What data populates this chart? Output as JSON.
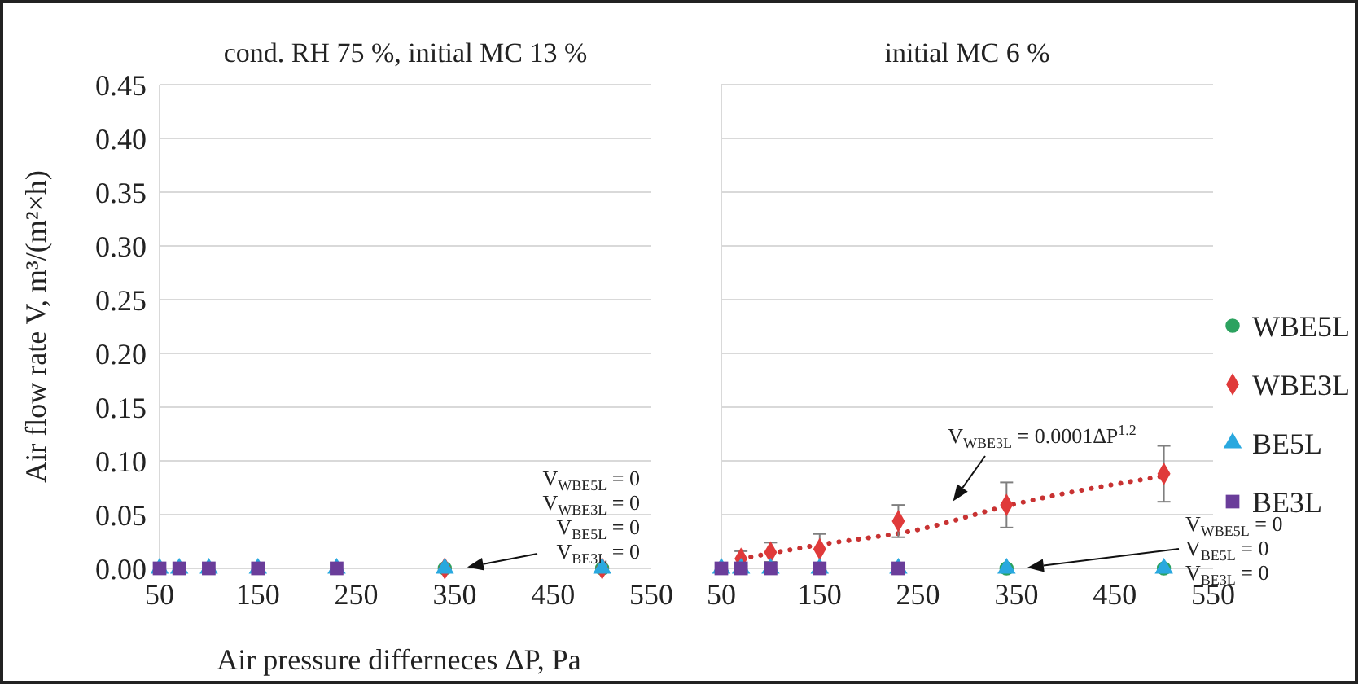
{
  "chart_data": [
    {
      "type": "scatter",
      "title": "cond. RH 75 %, initial  MC 13 %",
      "xlabel": "Air pressure differneces ΔP, Pa",
      "ylabel": "Air flow rate V, m³/(m²×h)",
      "xlim": [
        50,
        550
      ],
      "xticks": [
        50,
        150,
        250,
        350,
        450,
        550
      ],
      "ylim": [
        0,
        0.45
      ],
      "yticks": [
        {
          "value": 0,
          "label": "0.00"
        },
        {
          "value": 0.05,
          "label": "0.05"
        },
        {
          "value": 0.1,
          "label": "0.10"
        },
        {
          "value": 0.15,
          "label": "0.15"
        },
        {
          "value": 0.2,
          "label": "0.20"
        },
        {
          "value": 0.25,
          "label": "0.25"
        },
        {
          "value": 0.3,
          "label": "0.30"
        },
        {
          "value": 0.35,
          "label": "0.35"
        },
        {
          "value": 0.4,
          "label": "0.40"
        },
        {
          "value": 0.45,
          "label": "0.45"
        }
      ],
      "grid": "y",
      "series": [
        {
          "color": "#2ca25f",
          "marker": "circle",
          "x": [
            340,
            500
          ],
          "values": [
            0,
            0
          ]
        },
        {
          "color": "#e03a3a",
          "marker": "diamond",
          "x": [
            340,
            500
          ],
          "values": [
            0,
            0
          ]
        },
        {
          "color": "#29a8df",
          "marker": "triangle",
          "x": [
            50,
            70,
            100,
            150,
            230,
            340,
            500
          ],
          "values": [
            0,
            0,
            0,
            0,
            0,
            0,
            0
          ]
        },
        {
          "color": "#6a3d9a",
          "marker": "square",
          "x": [
            50,
            70,
            100,
            150,
            230
          ],
          "values": [
            0,
            0,
            0,
            0,
            0
          ]
        }
      ],
      "annotations": [
        "V$_{WBE5L}$ = 0",
        "V$_{WBE3L}$ = 0",
        "V$_{BE5L}$ = 0",
        "V$_{BE3L}$ = 0"
      ]
    },
    {
      "type": "scatter",
      "title": "initial  MC 6 %",
      "xlim": [
        50,
        550
      ],
      "xticks": [
        50,
        150,
        250,
        350,
        450,
        550
      ],
      "ylim": [
        0,
        0.45
      ],
      "yticks": [
        0,
        0.05,
        0.1,
        0.15,
        0.2,
        0.25,
        0.3,
        0.35,
        0.4,
        0.45
      ],
      "grid": "y",
      "tick_labels": "x",
      "legend": "right",
      "series": [
        {
          "name": "WBE5L",
          "color": "#2ca25f",
          "marker": "circle",
          "x": [
            340,
            500
          ],
          "values": [
            0,
            0
          ]
        },
        {
          "name": "WBE3L",
          "color": "#e03a3a",
          "marker": "diamond",
          "x": [
            70,
            100,
            150,
            230,
            340,
            500
          ],
          "values": [
            0.009,
            0.015,
            0.018,
            0.044,
            0.059,
            0.088
          ],
          "errors": [
            0.007,
            0.009,
            0.014,
            0.015,
            0.021,
            0.026
          ]
        },
        {
          "name": "BE5L",
          "color": "#29a8df",
          "marker": "triangle",
          "x": [
            50,
            70,
            100,
            150,
            230,
            340,
            500
          ],
          "values": [
            0,
            0,
            0,
            0,
            0,
            0,
            0
          ]
        },
        {
          "name": "BE3L",
          "color": "#6a3d9a",
          "marker": "square",
          "x": [
            50,
            70,
            100,
            150,
            230
          ],
          "values": [
            0,
            0,
            0,
            0,
            0
          ]
        },
        {
          "type": "line",
          "color": "#c83232",
          "line_style": "dotted",
          "marker": "none",
          "x": [
            70,
            150,
            250,
            340,
            500
          ],
          "values": [
            0.009,
            0.022,
            0.036,
            0.058,
            0.086
          ]
        }
      ],
      "annotations": [
        "V$_{WBE3L}$ = 0.0001ΔP$^{1.2}$",
        "V$_{WBE5L}$ = 0",
        "V$_{BE5L}$ = 0",
        "V$_{BE3L}$ = 0"
      ]
    }
  ]
}
